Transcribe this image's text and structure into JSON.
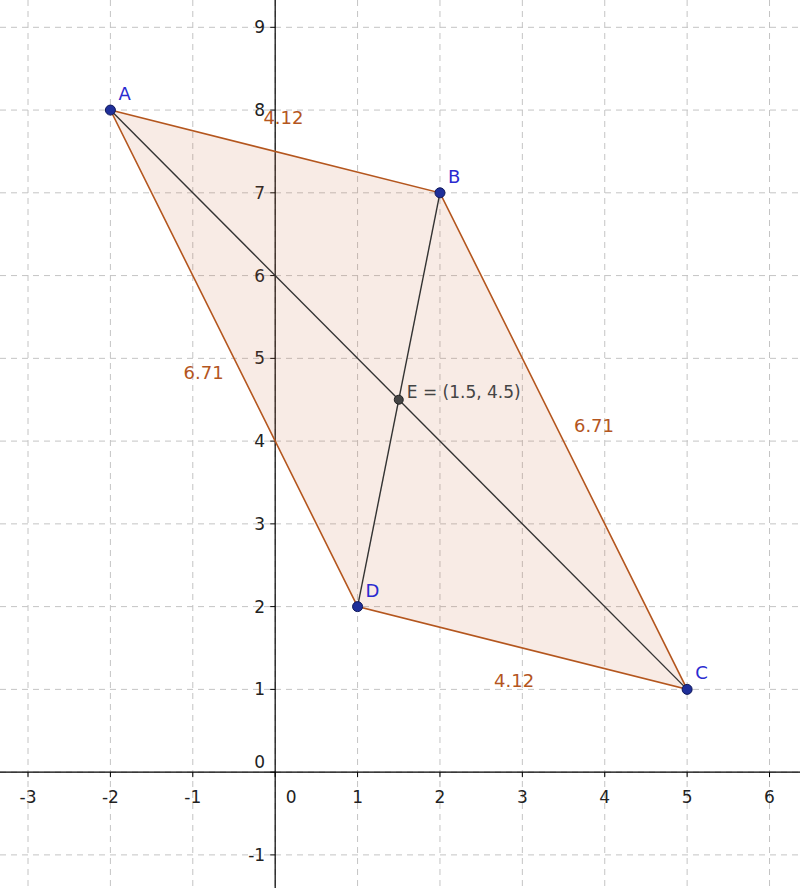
{
  "chart_data": {
    "type": "geometry",
    "xlim": [
      -3.34,
      6.37
    ],
    "ylim": [
      -1.4,
      9.33
    ],
    "xticks": [
      -3,
      -2,
      -1,
      0,
      1,
      2,
      3,
      4,
      5,
      6
    ],
    "yticks": [
      -1,
      0,
      1,
      2,
      3,
      4,
      5,
      6,
      7,
      8,
      9
    ],
    "grid": true,
    "color": "#b4561e",
    "points": [
      {
        "label": "A",
        "x": -2,
        "y": 8
      },
      {
        "label": "B",
        "x": 2,
        "y": 7
      },
      {
        "label": "C",
        "x": 5,
        "y": 1
      },
      {
        "label": "D",
        "x": 1,
        "y": 2
      }
    ],
    "center": {
      "label": "E = (1.5, 4.5)",
      "x": 1.5,
      "y": 4.5
    },
    "sides": [
      {
        "from": 0,
        "to": 1,
        "length": 4.12
      },
      {
        "from": 1,
        "to": 2,
        "length": 6.71
      },
      {
        "from": 2,
        "to": 3,
        "length": 4.12
      },
      {
        "from": 3,
        "to": 0,
        "length": 6.71
      }
    ],
    "diagonals": [
      [
        0,
        2
      ],
      [
        1,
        3
      ]
    ]
  }
}
